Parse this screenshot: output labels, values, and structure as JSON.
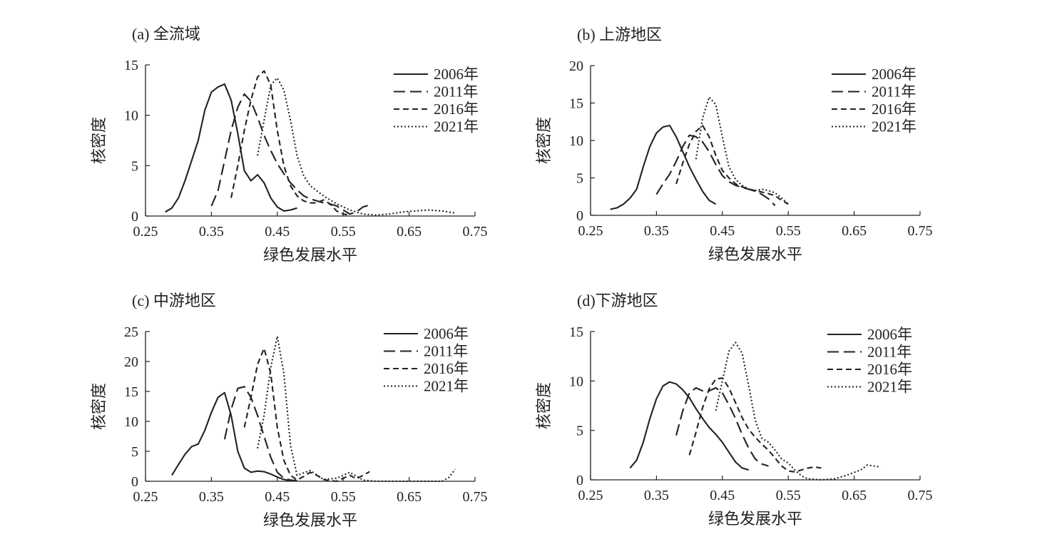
{
  "chart_data": [
    {
      "type": "line",
      "title": "(a) 全流域",
      "xlabel": "绿色发展水平",
      "ylabel": "核密度",
      "xlim": [
        0.25,
        0.75
      ],
      "ylim": [
        0,
        15
      ],
      "xticks": [
        "0.25",
        "0.35",
        "0.45",
        "0.55",
        "0.65",
        "0.75"
      ],
      "yticks": [
        "0",
        "5",
        "10",
        "15"
      ],
      "legend": "top-right",
      "series": [
        {
          "name": "2006年",
          "style": "solid",
          "x": [
            0.28,
            0.29,
            0.3,
            0.31,
            0.32,
            0.33,
            0.34,
            0.35,
            0.36,
            0.37,
            0.38,
            0.39,
            0.4,
            0.41,
            0.42,
            0.43,
            0.44,
            0.45,
            0.46,
            0.47,
            0.48
          ],
          "y": [
            0.4,
            0.8,
            1.8,
            3.5,
            5.5,
            7.5,
            10.5,
            12.3,
            12.8,
            13.1,
            11.5,
            8.2,
            4.5,
            3.5,
            4.1,
            3.3,
            1.8,
            0.9,
            0.5,
            0.6,
            0.8
          ]
        },
        {
          "name": "2011年",
          "style": "longdash",
          "x": [
            0.35,
            0.36,
            0.37,
            0.38,
            0.39,
            0.4,
            0.41,
            0.42,
            0.43,
            0.44,
            0.45,
            0.46,
            0.47,
            0.48,
            0.49,
            0.5,
            0.51,
            0.52,
            0.53,
            0.54,
            0.55,
            0.56,
            0.57,
            0.58,
            0.59
          ],
          "y": [
            1.0,
            2.5,
            5.5,
            8.5,
            10.8,
            12.1,
            11.4,
            9.8,
            8.0,
            6.5,
            5.2,
            4.2,
            3.3,
            2.6,
            2.0,
            1.7,
            1.5,
            1.3,
            1.2,
            1.0,
            0.6,
            0.2,
            0.4,
            0.9,
            1.1
          ]
        },
        {
          "name": "2016年",
          "style": "shortdash",
          "x": [
            0.38,
            0.39,
            0.4,
            0.41,
            0.42,
            0.43,
            0.44,
            0.45,
            0.46,
            0.47,
            0.48,
            0.49,
            0.5,
            0.51,
            0.52,
            0.53,
            0.54,
            0.55,
            0.56
          ],
          "y": [
            1.8,
            5.0,
            8.5,
            11.5,
            13.8,
            14.4,
            13.0,
            8.5,
            5.0,
            3.0,
            2.0,
            1.5,
            1.3,
            1.3,
            1.6,
            1.2,
            0.5,
            0.2,
            0.1
          ]
        },
        {
          "name": "2021年",
          "style": "dotted",
          "x": [
            0.42,
            0.43,
            0.44,
            0.45,
            0.46,
            0.47,
            0.48,
            0.49,
            0.5,
            0.52,
            0.54,
            0.56,
            0.58,
            0.6,
            0.62,
            0.64,
            0.66,
            0.68,
            0.7,
            0.72
          ],
          "y": [
            6.0,
            9.5,
            13.0,
            13.7,
            12.5,
            9.5,
            6.0,
            4.0,
            3.0,
            2.0,
            1.2,
            0.6,
            0.2,
            0.1,
            0.2,
            0.4,
            0.5,
            0.6,
            0.5,
            0.3
          ]
        }
      ]
    },
    {
      "type": "line",
      "title": "(b) 上游地区",
      "xlabel": "绿色发展水平",
      "ylabel": "核密度",
      "xlim": [
        0.25,
        0.75
      ],
      "ylim": [
        0,
        20
      ],
      "xticks": [
        "0.25",
        "0.35",
        "0.45",
        "0.55",
        "0.65",
        "0.75"
      ],
      "yticks": [
        "0",
        "5",
        "10",
        "15",
        "20"
      ],
      "legend": "top-right",
      "series": [
        {
          "name": "2006年",
          "style": "solid",
          "x": [
            0.28,
            0.29,
            0.3,
            0.31,
            0.32,
            0.33,
            0.34,
            0.35,
            0.36,
            0.37,
            0.38,
            0.39,
            0.4,
            0.41,
            0.42,
            0.43,
            0.44
          ],
          "y": [
            0.8,
            1.0,
            1.5,
            2.3,
            3.5,
            6.5,
            9.2,
            11.0,
            11.8,
            12.0,
            10.5,
            8.5,
            6.5,
            4.8,
            3.2,
            2.0,
            1.5
          ]
        },
        {
          "name": "2011年",
          "style": "longdash",
          "x": [
            0.35,
            0.36,
            0.37,
            0.38,
            0.39,
            0.4,
            0.41,
            0.42,
            0.43,
            0.44,
            0.45,
            0.46,
            0.47,
            0.48,
            0.49,
            0.5,
            0.51,
            0.52,
            0.53
          ],
          "y": [
            2.8,
            4.2,
            5.5,
            7.2,
            9.2,
            10.7,
            10.5,
            9.8,
            8.5,
            6.8,
            5.3,
            4.5,
            4.0,
            3.7,
            3.5,
            3.2,
            2.8,
            2.2,
            1.3
          ]
        },
        {
          "name": "2016年",
          "style": "shortdash",
          "x": [
            0.38,
            0.39,
            0.4,
            0.41,
            0.42,
            0.43,
            0.44,
            0.45,
            0.46,
            0.47,
            0.48,
            0.49,
            0.5,
            0.51,
            0.52,
            0.53,
            0.54,
            0.55
          ],
          "y": [
            4.2,
            7.0,
            9.5,
            11.2,
            12.0,
            10.5,
            8.0,
            6.0,
            5.0,
            4.2,
            3.8,
            3.5,
            3.3,
            3.1,
            2.9,
            2.6,
            2.0,
            1.5
          ]
        },
        {
          "name": "2021年",
          "style": "dotted",
          "x": [
            0.41,
            0.42,
            0.43,
            0.44,
            0.45,
            0.46,
            0.47,
            0.48,
            0.49,
            0.5,
            0.51,
            0.52,
            0.53,
            0.54,
            0.55
          ],
          "y": [
            7.5,
            13.0,
            15.8,
            14.8,
            10.5,
            6.5,
            4.8,
            4.0,
            3.5,
            3.3,
            3.5,
            3.3,
            3.0,
            2.3,
            1.5
          ]
        }
      ]
    },
    {
      "type": "line",
      "title": "(c) 中游地区",
      "xlabel": "绿色发展水平",
      "ylabel": "核密度",
      "xlim": [
        0.25,
        0.75
      ],
      "ylim": [
        0,
        25
      ],
      "xticks": [
        "0.25",
        "0.35",
        "0.45",
        "0.55",
        "0.65",
        "0.75"
      ],
      "yticks": [
        "0",
        "5",
        "10",
        "15",
        "20",
        "25"
      ],
      "legend": "top-right",
      "series": [
        {
          "name": "2006年",
          "style": "solid",
          "x": [
            0.29,
            0.3,
            0.31,
            0.32,
            0.33,
            0.34,
            0.35,
            0.36,
            0.37,
            0.38,
            0.39,
            0.4,
            0.41,
            0.42,
            0.43,
            0.44,
            0.45,
            0.46,
            0.47
          ],
          "y": [
            1.0,
            2.8,
            4.5,
            5.8,
            6.2,
            8.5,
            11.5,
            14.0,
            14.8,
            11.0,
            5.0,
            2.2,
            1.5,
            1.7,
            1.6,
            1.2,
            0.7,
            0.3,
            0.1
          ]
        },
        {
          "name": "2011年",
          "style": "longdash",
          "x": [
            0.37,
            0.38,
            0.39,
            0.4,
            0.41,
            0.42,
            0.43,
            0.44,
            0.45,
            0.46,
            0.47,
            0.48
          ],
          "y": [
            7.0,
            12.0,
            15.5,
            15.8,
            14.0,
            11.0,
            7.5,
            4.0,
            1.5,
            0.5,
            0.2,
            0.1
          ]
        },
        {
          "name": "2016年",
          "style": "shortdash",
          "x": [
            0.4,
            0.41,
            0.42,
            0.43,
            0.44,
            0.45,
            0.46,
            0.47,
            0.48,
            0.49,
            0.5,
            0.51,
            0.52,
            0.53,
            0.54,
            0.55,
            0.56,
            0.57,
            0.58,
            0.59
          ],
          "y": [
            9.0,
            14.0,
            19.5,
            22.2,
            18.0,
            9.0,
            3.5,
            1.0,
            0.2,
            0.8,
            1.5,
            1.0,
            0.3,
            0.1,
            0.0,
            0.5,
            1.0,
            0.4,
            1.0,
            1.6
          ]
        },
        {
          "name": "2021年",
          "style": "dotted",
          "x": [
            0.42,
            0.43,
            0.44,
            0.45,
            0.46,
            0.47,
            0.48,
            0.5,
            0.52,
            0.54,
            0.56,
            0.58,
            0.6,
            0.62,
            0.64,
            0.66,
            0.68,
            0.7,
            0.71,
            0.72
          ],
          "y": [
            5.5,
            11.0,
            19.0,
            24.2,
            18.0,
            6.0,
            1.0,
            1.8,
            0.3,
            0.5,
            1.5,
            0.2,
            0.0,
            0.0,
            0.0,
            0.0,
            0.0,
            0.0,
            0.6,
            2.0
          ]
        }
      ]
    },
    {
      "type": "line",
      "title": "(d)下游地区",
      "xlabel": "绿色发展水平",
      "ylabel": "核密度",
      "xlim": [
        0.25,
        0.75
      ],
      "ylim": [
        0,
        15
      ],
      "xticks": [
        "0.25",
        "0.35",
        "0.45",
        "0.55",
        "0.65",
        "0.75"
      ],
      "yticks": [
        "0",
        "5",
        "10",
        "15"
      ],
      "legend": "top-right",
      "series": [
        {
          "name": "2006年",
          "style": "solid",
          "x": [
            0.31,
            0.32,
            0.33,
            0.34,
            0.35,
            0.36,
            0.37,
            0.38,
            0.39,
            0.4,
            0.41,
            0.42,
            0.43,
            0.44,
            0.45,
            0.46,
            0.47,
            0.48,
            0.49
          ],
          "y": [
            1.2,
            2.0,
            3.8,
            6.2,
            8.2,
            9.5,
            9.9,
            9.7,
            9.1,
            8.3,
            7.2,
            6.2,
            5.3,
            4.6,
            3.8,
            2.8,
            1.8,
            1.2,
            1.0
          ]
        },
        {
          "name": "2011年",
          "style": "longdash",
          "x": [
            0.38,
            0.39,
            0.4,
            0.41,
            0.42,
            0.43,
            0.44,
            0.45,
            0.46,
            0.47,
            0.48,
            0.49,
            0.5,
            0.51,
            0.52
          ],
          "y": [
            4.5,
            7.0,
            8.8,
            9.3,
            9.0,
            9.0,
            9.3,
            8.8,
            7.6,
            6.2,
            4.6,
            3.2,
            2.1,
            1.6,
            1.4
          ]
        },
        {
          "name": "2016年",
          "style": "shortdash",
          "x": [
            0.4,
            0.41,
            0.42,
            0.43,
            0.44,
            0.45,
            0.46,
            0.47,
            0.48,
            0.49,
            0.5,
            0.51,
            0.52,
            0.53,
            0.54,
            0.55,
            0.56,
            0.57,
            0.58,
            0.59,
            0.6
          ],
          "y": [
            2.5,
            4.8,
            7.3,
            9.2,
            10.2,
            10.3,
            9.3,
            7.8,
            6.3,
            5.1,
            4.3,
            3.6,
            3.0,
            2.2,
            1.4,
            0.9,
            0.8,
            1.0,
            1.2,
            1.3,
            1.2
          ]
        },
        {
          "name": "2021年",
          "style": "dotted",
          "x": [
            0.44,
            0.45,
            0.46,
            0.47,
            0.48,
            0.49,
            0.5,
            0.51,
            0.52,
            0.53,
            0.54,
            0.55,
            0.56,
            0.57,
            0.58,
            0.6,
            0.62,
            0.64,
            0.66,
            0.67,
            0.68,
            0.69
          ],
          "y": [
            7.0,
            10.0,
            13.0,
            13.9,
            12.8,
            9.5,
            6.0,
            4.2,
            3.8,
            3.0,
            2.1,
            1.7,
            1.0,
            0.4,
            0.1,
            0.0,
            0.1,
            0.5,
            1.0,
            1.5,
            1.4,
            1.3
          ]
        }
      ]
    }
  ]
}
